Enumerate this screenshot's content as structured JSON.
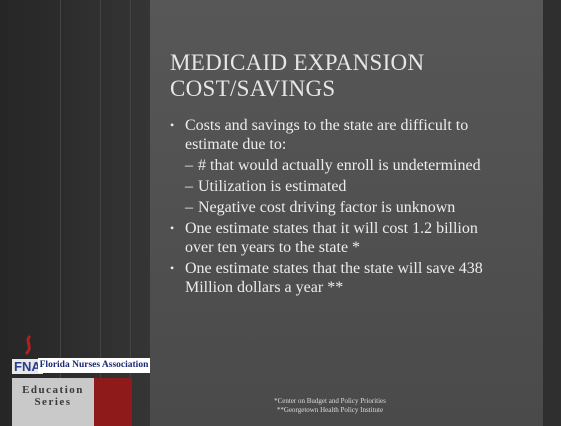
{
  "slide": {
    "title_lines": [
      "MEDICAID EXPANSION",
      "COST/SAVINGS"
    ],
    "bullets": [
      {
        "text": "Costs and savings to the state are difficult to estimate due to:",
        "sub": [
          "# that would actually enroll is undetermined",
          "Utilization is estimated",
          "Negative cost driving factor is unknown"
        ]
      },
      {
        "text": "One estimate states that it will cost 1.2 billion over ten years to the state *"
      },
      {
        "text": "One estimate states that the state will save 438 Million dollars a year **"
      }
    ],
    "footnotes": [
      "*Center on Budget and Policy Priorities",
      "**Georgetown Health Policy Institute"
    ],
    "logo": {
      "mark": "FNA",
      "name": "Florida Nurses Association",
      "series_lines": [
        "Education",
        "Series"
      ]
    }
  }
}
